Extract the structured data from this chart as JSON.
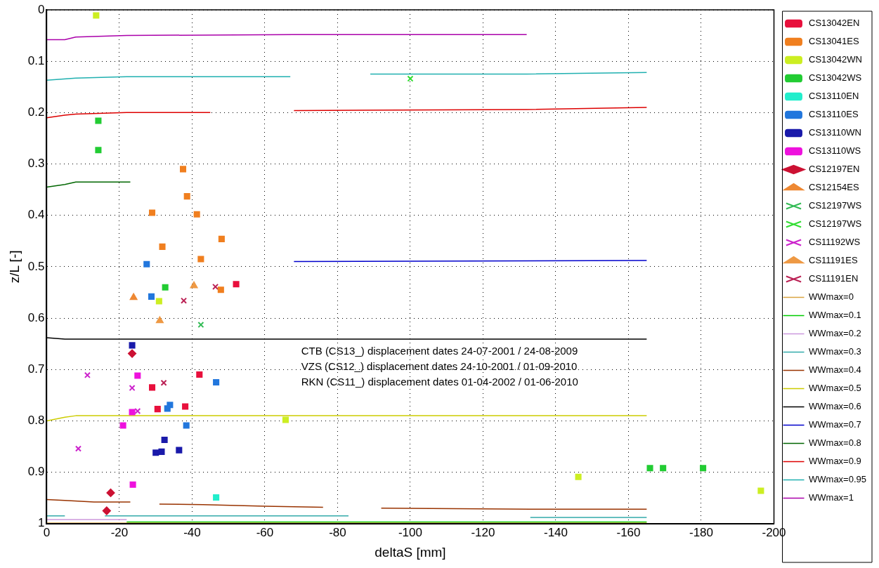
{
  "chart_data": {
    "type": "scatter",
    "xlabel": "deltaS [mm]",
    "ylabel": "z/L [-]",
    "xlim": [
      0,
      -200
    ],
    "xticks": [
      0,
      -20,
      -40,
      -60,
      -80,
      -100,
      -120,
      -140,
      -160,
      -180,
      -200
    ],
    "ylim": [
      1,
      0
    ],
    "yticks": [
      0,
      0.1,
      0.2,
      0.3,
      0.4,
      0.5,
      0.6,
      0.7,
      0.8,
      0.9,
      1
    ],
    "grid": true,
    "legend": "right",
    "marker": "square",
    "annotations": [
      "CTB (CS13_) displacement dates 24-07-2001 / 24-08-2009",
      "VZS (CS12_) displacement dates 24-10-2001 / 01-09-2010",
      "RKN (CS11_) displacement dates 01-04-2002 / 01-06-2010"
    ],
    "series": [
      {
        "name": "CS13042EN",
        "color": "#e8103c",
        "x": [
          -52.1,
          -42,
          -29,
          -30.5,
          -38.1
        ],
        "values": [
          0.534,
          0.71,
          0.735,
          0.777,
          0.772
        ]
      },
      {
        "name": "CS13041ES",
        "color": "#f07f1f",
        "x": [
          -37.5,
          -38.6,
          -29,
          -41.3,
          -48.1,
          -31.8,
          -42.4,
          -47.9
        ],
        "values": [
          0.31,
          0.363,
          0.395,
          0.398,
          0.446,
          0.461,
          0.485,
          0.545
        ]
      },
      {
        "name": "CS13042WN",
        "color": "#ccee22",
        "x": [
          -13.6,
          -30.9,
          -65.7,
          -146.2,
          -196.4
        ],
        "values": [
          0.011,
          0.567,
          0.798,
          0.909,
          0.936
        ]
      },
      {
        "name": "CS13042WS",
        "color": "#22cc33",
        "x": [
          -14.2,
          -14.2,
          -32.6,
          -165.9,
          -169.5,
          -180.5
        ],
        "values": [
          0.216,
          0.273,
          0.54,
          0.892,
          0.892,
          0.892
        ]
      },
      {
        "name": "CS13110EN",
        "color": "#22eecc",
        "x": [
          -46.6
        ],
        "values": [
          0.949
        ]
      },
      {
        "name": "CS13110ES",
        "color": "#2277dd",
        "x": [
          -27.5,
          -28.8,
          -46.6,
          -33.2,
          -33.9,
          -38.4
        ],
        "values": [
          0.495,
          0.558,
          0.725,
          0.776,
          0.769,
          0.809
        ]
      },
      {
        "name": "CS13110WN",
        "color": "#1a1aaa",
        "x": [
          -23.5,
          -32.4,
          -30,
          -31.6,
          -36.4
        ],
        "values": [
          0.653,
          0.837,
          0.862,
          0.86,
          0.857
        ]
      },
      {
        "name": "CS13110WS",
        "color": "#ee11dd",
        "x": [
          -25,
          -23.5,
          -21,
          -23.7
        ],
        "values": [
          0.712,
          0.783,
          0.809,
          0.924
        ]
      },
      {
        "name": "CS12197EN",
        "color": "#cc1133",
        "marker": "diamond",
        "x": [
          -23.5,
          -17.6,
          -16.5
        ],
        "values": [
          0.669,
          0.94,
          0.975
        ]
      },
      {
        "name": "CS12154ES",
        "color": "#ee8833",
        "marker": "triangle",
        "x": [
          -23.9
        ],
        "values": [
          0.56
        ]
      },
      {
        "name": "CS12197WS",
        "color": "#33bb55",
        "marker": "cross",
        "x": [
          -42.4
        ],
        "values": [
          0.613
        ]
      },
      {
        "name": "CS12197WS",
        "color": "#33dd33",
        "marker": "cross",
        "x": [
          -100
        ],
        "values": [
          0.134
        ]
      },
      {
        "name": "CS11192WS",
        "color": "#cc22cc",
        "marker": "cross",
        "x": [
          -11.2,
          -23.5,
          -25,
          -8.7
        ],
        "values": [
          0.711,
          0.736,
          0.781,
          0.854
        ]
      },
      {
        "name": "CS11191ES",
        "color": "#ee9944",
        "marker": "triangle",
        "x": [
          -40.5,
          -31.1
        ],
        "values": [
          0.537,
          0.605
        ]
      },
      {
        "name": "CS11191EN",
        "color": "#bb2255",
        "marker": "cross",
        "x": [
          -46.4,
          -37.7,
          -32.2
        ],
        "values": [
          0.539,
          0.566,
          0.726
        ]
      },
      {
        "name": "WWmax=0",
        "type": "line",
        "marker": "none",
        "color": "#d9a441",
        "x": [
          0,
          -165
        ],
        "values": [
          0.999,
          0.999
        ]
      },
      {
        "name": "WWmax=0.1",
        "type": "line",
        "marker": "none",
        "color": "#00cc00",
        "x": [
          -22,
          -165
        ],
        "values": [
          0.997,
          0.997
        ]
      },
      {
        "name": "WWmax=0.2",
        "type": "line",
        "marker": "none",
        "color": "#cc99dd",
        "x": [
          0,
          -22
        ],
        "values": [
          0.992,
          0.992
        ]
      },
      {
        "name": "WWmax=0.3",
        "type": "line",
        "marker": "none",
        "color": "#33aaaa",
        "x": [
          0,
          -5,
          -6,
          -16,
          -83,
          -84,
          -133,
          -165
        ],
        "values": [
          0.985,
          0.985,
          null,
          0.985,
          0.985,
          null,
          0.988,
          0.988
        ]
      },
      {
        "name": "WWmax=0.4",
        "type": "line",
        "marker": "none",
        "color": "#993300",
        "x": [
          0,
          -5,
          -13,
          -23,
          -24,
          -31,
          -43,
          -60,
          -76,
          -77,
          -92,
          -133,
          -165
        ],
        "values": [
          0.953,
          0.955,
          0.958,
          0.958,
          null,
          0.962,
          0.963,
          0.966,
          0.968,
          null,
          0.97,
          0.972,
          0.972
        ]
      },
      {
        "name": "WWmax=0.5",
        "type": "line",
        "marker": "none",
        "color": "#cccc00",
        "x": [
          0,
          -5,
          -8,
          -165
        ],
        "values": [
          0.8,
          0.793,
          0.79,
          0.79
        ]
      },
      {
        "name": "WWmax=0.6",
        "type": "line",
        "marker": "none",
        "color": "#000000",
        "x": [
          0,
          -5,
          -165
        ],
        "values": [
          0.638,
          0.641,
          0.641
        ]
      },
      {
        "name": "WWmax=0.7",
        "type": "line",
        "marker": "none",
        "color": "#0000cc",
        "x": [
          -68,
          -165
        ],
        "values": [
          0.49,
          0.488
        ]
      },
      {
        "name": "WWmax=0.8",
        "type": "line",
        "marker": "none",
        "color": "#006600",
        "x": [
          0,
          -5,
          -8,
          -23
        ],
        "values": [
          0.345,
          0.34,
          0.335,
          0.335
        ]
      },
      {
        "name": "WWmax=0.9",
        "type": "line",
        "marker": "none",
        "color": "#dd0000",
        "x": [
          0,
          -5,
          -8,
          -22,
          -45,
          -46,
          -68,
          -132,
          -165
        ],
        "values": [
          0.21,
          0.205,
          0.203,
          0.2,
          0.2,
          null,
          0.196,
          0.194,
          0.19
        ]
      },
      {
        "name": "WWmax=0.95",
        "type": "line",
        "marker": "none",
        "color": "#20b0b0",
        "x": [
          0,
          -8,
          -22,
          -67,
          -68,
          -89,
          -132,
          -165
        ],
        "values": [
          0.137,
          0.133,
          0.13,
          0.13,
          null,
          0.125,
          0.125,
          0.122
        ]
      },
      {
        "name": "WWmax=1",
        "type": "line",
        "marker": "none",
        "color": "#aa00aa",
        "x": [
          0,
          -5,
          -8,
          -22,
          -68,
          -132
        ],
        "values": [
          0.058,
          0.058,
          0.053,
          0.05,
          0.048,
          0.048
        ]
      }
    ]
  }
}
